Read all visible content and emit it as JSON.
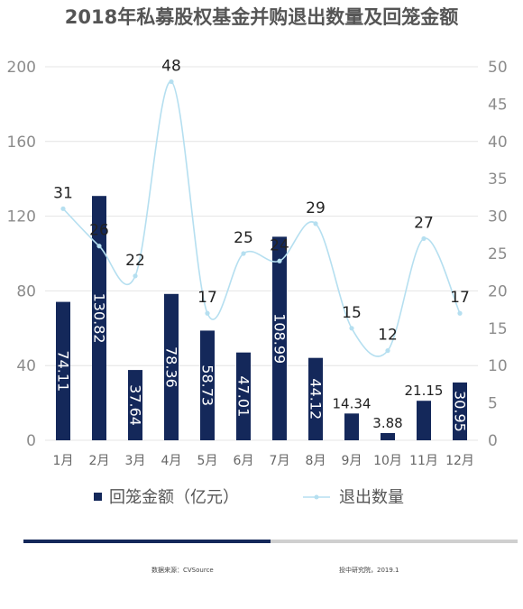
{
  "chart_data": {
    "type": "bar",
    "title": "2018年私募股权基金并购退出数量及回笼金额",
    "categories": [
      "1月",
      "2月",
      "3月",
      "4月",
      "5月",
      "6月",
      "7月",
      "8月",
      "9月",
      "10月",
      "11月",
      "12月"
    ],
    "series": [
      {
        "name": "回笼金额（亿元）",
        "type": "bar",
        "axis": "left",
        "values": [
          74.11,
          130.82,
          37.64,
          78.36,
          58.73,
          47.01,
          108.99,
          44.12,
          14.34,
          3.88,
          21.15,
          30.95
        ],
        "labels": [
          "74.11",
          "130.82",
          "37.64",
          "78.36",
          "58.73",
          "47.01",
          "108.99",
          "44.12",
          "14.34",
          "3.88",
          "21.15",
          "30.95"
        ],
        "color": "#14285a"
      },
      {
        "name": "退出数量",
        "type": "line",
        "axis": "right",
        "values": [
          31,
          26,
          22,
          48,
          17,
          25,
          24,
          29,
          15,
          12,
          27,
          17
        ],
        "labels": [
          "31",
          "26",
          "22",
          "48",
          "17",
          "25",
          "24",
          "29",
          "15",
          "12",
          "27",
          "17"
        ],
        "color": "#b5dff0"
      }
    ],
    "y_left": {
      "min": 0,
      "max": 200,
      "ticks": [
        "0",
        "40",
        "80",
        "120",
        "160",
        "200"
      ]
    },
    "y_right": {
      "min": 0,
      "max": 50,
      "ticks": [
        "0",
        "5",
        "10",
        "15",
        "20",
        "25",
        "30",
        "35",
        "40",
        "45",
        "50"
      ]
    },
    "grid": true,
    "legend": "bottom"
  },
  "footer": {
    "source": "数据来源：CVSource",
    "note": "投中研究院，2019.1"
  }
}
